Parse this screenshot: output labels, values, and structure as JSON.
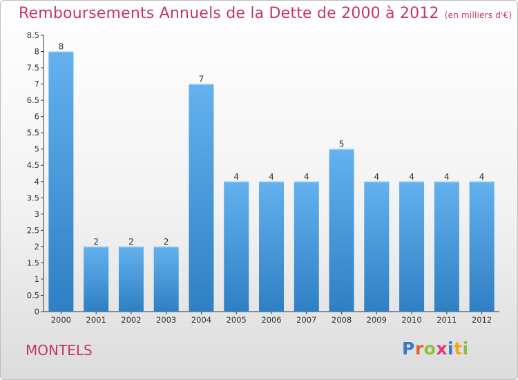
{
  "header": {
    "title": "Remboursements Annuels de la Dette de 2000 à 2012",
    "subtitle": "(en milliers d'€)"
  },
  "footer": {
    "commune": "MONTELS",
    "logo_letters": [
      {
        "ch": "P",
        "color": "#3b78c8"
      },
      {
        "ch": "r",
        "color": "#e0642a"
      },
      {
        "ch": "o",
        "color": "#8dbf3f"
      },
      {
        "ch": "x",
        "color": "#e03a7a"
      },
      {
        "ch": "i",
        "color": "#3b78c8"
      },
      {
        "ch": "t",
        "color": "#f2a51d"
      },
      {
        "ch": "i",
        "color": "#8dbf3f"
      }
    ]
  },
  "chart_data": {
    "type": "bar",
    "categories": [
      "2000",
      "2001",
      "2002",
      "2003",
      "2004",
      "2005",
      "2006",
      "2007",
      "2008",
      "2009",
      "2010",
      "2011",
      "2012"
    ],
    "values": [
      8,
      2,
      2,
      2,
      7,
      4,
      4,
      4,
      5,
      4,
      4,
      4,
      4
    ],
    "data_labels": [
      "8",
      "2",
      "2",
      "2",
      "7",
      "4",
      "4",
      "4",
      "5",
      "4",
      "4",
      "4",
      "4"
    ],
    "ylim": [
      0,
      8.5
    ],
    "yticks": [
      "0",
      "0.5",
      "1",
      "1.5",
      "2",
      "2.5",
      "3",
      "3.5",
      "4",
      "4.5",
      "5",
      "5.5",
      "6",
      "6.5",
      "7",
      "7.5",
      "8",
      "8.5"
    ],
    "grid": false,
    "bar_color": "#3f8fd8",
    "bar_color_light": "#63b1ee"
  }
}
